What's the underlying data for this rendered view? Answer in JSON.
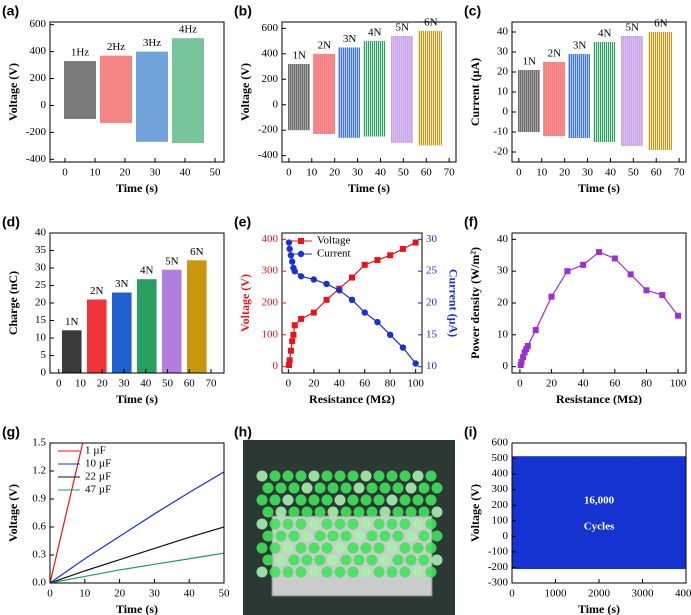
{
  "chart_data": [
    {
      "type": "burst",
      "panel": "(a)",
      "xlabel": "Time (s)",
      "ylabel": "Voltage (V)",
      "xlim": [
        -5,
        53
      ],
      "xticks": [
        0,
        10,
        20,
        30,
        40,
        50
      ],
      "ylim": [
        -420,
        620
      ],
      "yticks": [
        -400,
        -200,
        0,
        200,
        400,
        600
      ],
      "series": [
        {
          "name": "1Hz",
          "color": "#222222",
          "xrange": [
            0,
            10
          ],
          "values": [
            -100,
            330
          ]
        },
        {
          "name": "2Hz",
          "color": "#ee3333",
          "xrange": [
            12,
            22
          ],
          "values": [
            -130,
            370
          ]
        },
        {
          "name": "3Hz",
          "color": "#1565c0",
          "xrange": [
            24,
            34
          ],
          "values": [
            -270,
            400
          ]
        },
        {
          "name": "4Hz",
          "color": "#1e9e5a",
          "xrange": [
            36,
            46
          ],
          "values": [
            -280,
            500
          ]
        }
      ]
    },
    {
      "type": "burst",
      "panel": "(b)",
      "xlabel": "Time (s)",
      "ylabel": "Voltage (V)",
      "xlim": [
        -3,
        73
      ],
      "xticks": [
        0,
        10,
        20,
        30,
        40,
        50,
        60,
        70
      ],
      "ylim": [
        -450,
        650
      ],
      "yticks": [
        -400,
        -200,
        0,
        200,
        400,
        600
      ],
      "series": [
        {
          "name": "1N",
          "color": "#3a3a3a",
          "xrange": [
            0,
            9
          ],
          "values": [
            -200,
            320
          ]
        },
        {
          "name": "2N",
          "color": "#f0353a",
          "xrange": [
            11,
            20
          ],
          "values": [
            -230,
            400
          ]
        },
        {
          "name": "3N",
          "color": "#1f5fd0",
          "xrange": [
            22,
            31
          ],
          "values": [
            -260,
            450
          ]
        },
        {
          "name": "4N",
          "color": "#27a05e",
          "xrange": [
            33,
            42
          ],
          "values": [
            -250,
            500
          ]
        },
        {
          "name": "5N",
          "color": "#b27ee0",
          "xrange": [
            45,
            54
          ],
          "values": [
            -300,
            540
          ]
        },
        {
          "name": "6N",
          "color": "#c9960c",
          "xrange": [
            57,
            67
          ],
          "values": [
            -320,
            580
          ]
        }
      ]
    },
    {
      "type": "burst",
      "panel": "(c)",
      "xlabel": "Time (s)",
      "ylabel": "Current (µA)",
      "xlim": [
        -3,
        73
      ],
      "xticks": [
        0,
        10,
        20,
        30,
        40,
        50,
        60,
        70
      ],
      "ylim": [
        -25,
        45
      ],
      "yticks": [
        -20,
        -10,
        0,
        10,
        20,
        30,
        40
      ],
      "series": [
        {
          "name": "1N",
          "color": "#3a3a3a",
          "xrange": [
            0,
            9
          ],
          "values": [
            -10,
            21
          ]
        },
        {
          "name": "2N",
          "color": "#f0353a",
          "xrange": [
            11,
            20
          ],
          "values": [
            -12,
            25
          ]
        },
        {
          "name": "3N",
          "color": "#1f5fd0",
          "xrange": [
            22,
            31
          ],
          "values": [
            -13,
            29
          ]
        },
        {
          "name": "4N",
          "color": "#27a05e",
          "xrange": [
            33,
            42
          ],
          "values": [
            -15,
            35
          ]
        },
        {
          "name": "5N",
          "color": "#b27ee0",
          "xrange": [
            45,
            54
          ],
          "values": [
            -17,
            38
          ]
        },
        {
          "name": "6N",
          "color": "#c9960c",
          "xrange": [
            57,
            67
          ],
          "values": [
            -19,
            40
          ]
        }
      ]
    },
    {
      "type": "bar",
      "panel": "(d)",
      "xlabel": "Time (s)",
      "ylabel": "Charge (nC)",
      "xlim": [
        -4,
        76
      ],
      "xticks": [
        0,
        10,
        20,
        30,
        40,
        50,
        60,
        70
      ],
      "ylim": [
        0,
        40
      ],
      "yticks": [
        0,
        5,
        10,
        15,
        20,
        25,
        30,
        35,
        40
      ],
      "categories": [
        "1N",
        "2N",
        "3N",
        "4N",
        "5N",
        "6N"
      ],
      "x": [
        6,
        17.5,
        29,
        40.5,
        52,
        63.5
      ],
      "bar_width": 9,
      "values": [
        12.2,
        21,
        23,
        26.8,
        29.5,
        32.2
      ],
      "colors": [
        "#3a3a3a",
        "#f0353a",
        "#1f5fd0",
        "#27a05e",
        "#b27ee0",
        "#c9960c"
      ]
    },
    {
      "type": "line",
      "panel": "(e)",
      "xlabel": "Resistance (MΩ)",
      "ylabel": "Voltage (V)",
      "y2label": "Current (µA)",
      "ycolor": "#e8141c",
      "y2color": "#1a2fd6",
      "legend": "upper left",
      "xlim": [
        -5,
        105
      ],
      "xticks": [
        0,
        20,
        40,
        60,
        80,
        100
      ],
      "ylim": [
        -20,
        420
      ],
      "yticks": [
        0,
        100,
        200,
        300,
        400
      ],
      "y2lim": [
        9,
        31
      ],
      "y2ticks": [
        10,
        15,
        20,
        25,
        30
      ],
      "x": [
        0.5,
        1,
        2,
        3,
        4,
        5,
        10,
        20,
        30,
        40,
        50,
        60,
        70,
        80,
        90,
        100
      ],
      "series": [
        {
          "name": "Voltage",
          "color": "#e8141c",
          "marker": "square",
          "values": [
            5,
            20,
            50,
            80,
            100,
            130,
            150,
            170,
            210,
            245,
            280,
            320,
            335,
            350,
            370,
            390
          ]
        },
        {
          "name": "Current",
          "color": "#1a2fd6",
          "marker": "circle",
          "axis": "y2",
          "values": [
            29.5,
            28.5,
            27.5,
            26.5,
            25.5,
            25,
            24.2,
            23.7,
            23,
            22,
            20.5,
            18.5,
            17,
            15,
            13,
            10.5
          ]
        }
      ]
    },
    {
      "type": "line",
      "panel": "(f)",
      "xlabel": "Resistance (MΩ)",
      "ylabel": "Power density (W/m²)",
      "xlim": [
        -5,
        105
      ],
      "xticks": [
        0,
        20,
        40,
        60,
        80,
        100
      ],
      "ylim": [
        -2,
        42
      ],
      "yticks": [
        0,
        10,
        20,
        30,
        40
      ],
      "x": [
        0.5,
        1,
        2,
        3,
        4,
        5,
        10,
        20,
        30,
        40,
        50,
        60,
        70,
        80,
        90,
        100
      ],
      "series": [
        {
          "color": "#9b2fd6",
          "marker": "square",
          "values": [
            0.5,
            1.5,
            3,
            4.5,
            5.5,
            6.5,
            11.5,
            22,
            30,
            32,
            36,
            34,
            29,
            24,
            22.5,
            16
          ]
        }
      ]
    },
    {
      "type": "line",
      "panel": "(g)",
      "xlabel": "Time (s)",
      "ylabel": "Voltage (V)",
      "legend": "upper left",
      "xlim": [
        0,
        50
      ],
      "xticks": [
        0,
        10,
        20,
        30,
        40,
        50
      ],
      "ylim": [
        0,
        1.5
      ],
      "yticks": [
        {
          "value": 0,
          "label": "0.0"
        },
        0.3,
        0.6,
        0.9,
        1.2,
        1.5
      ],
      "series": [
        {
          "name": "1 µF",
          "color": "#e8141c",
          "x": [
            0,
            9.4
          ],
          "values": [
            0,
            1.5
          ]
        },
        {
          "name": "10 µF",
          "color": "#1a2fd6",
          "x": [
            0,
            10,
            20,
            30,
            40,
            50
          ],
          "values": [
            0,
            0.26,
            0.5,
            0.74,
            0.97,
            1.19
          ]
        },
        {
          "name": "22 µF",
          "color": "#111111",
          "x": [
            0,
            10,
            20,
            30,
            40,
            50
          ],
          "values": [
            0,
            0.13,
            0.25,
            0.37,
            0.49,
            0.6
          ]
        },
        {
          "name": "47 µF",
          "color": "#1e9e5a",
          "x": [
            0,
            10,
            20,
            30,
            40,
            50
          ],
          "values": [
            0,
            0.07,
            0.14,
            0.2,
            0.26,
            0.32
          ]
        }
      ]
    },
    {
      "type": "photo",
      "panel": "(h)"
    },
    {
      "type": "burst",
      "panel": "(i)",
      "xlabel": "Time (s)",
      "ylabel": "Voltage (V)",
      "annotation": [
        "16,000",
        "Cycles"
      ],
      "xlim": [
        0,
        4000
      ],
      "xticks": [
        0,
        1000,
        2000,
        3000,
        4000
      ],
      "ylim": [
        -300,
        600
      ],
      "yticks": [
        -300,
        -200,
        -100,
        0,
        100,
        200,
        300,
        400,
        500,
        600
      ],
      "series": [
        {
          "color": "#1433d0",
          "xrange": [
            0,
            4000
          ],
          "values": [
            -210,
            515
          ]
        }
      ]
    }
  ]
}
